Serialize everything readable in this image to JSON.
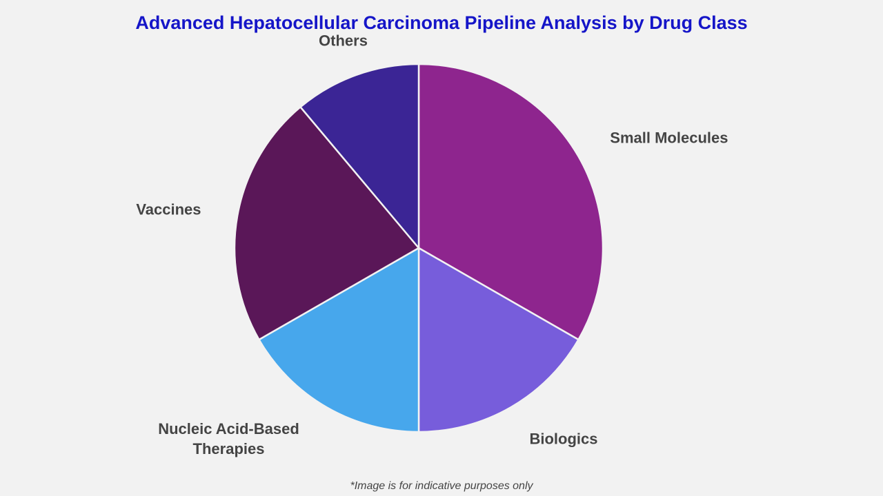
{
  "chart_data": {
    "type": "pie",
    "title": "Advanced Hepatocellular Carcinoma Pipeline Analysis by Drug Class",
    "categories": [
      "Small Molecules",
      "Biologics",
      "Nucleic Acid-Based Therapies",
      "Vaccines",
      "Others"
    ],
    "values": [
      33.3,
      16.7,
      16.7,
      22.2,
      11.1
    ],
    "colors": [
      "#8e258e",
      "#775ddb",
      "#47a7ec",
      "#5a1758",
      "#3b2595"
    ],
    "footnote": "*Image is for indicative purposes only"
  }
}
